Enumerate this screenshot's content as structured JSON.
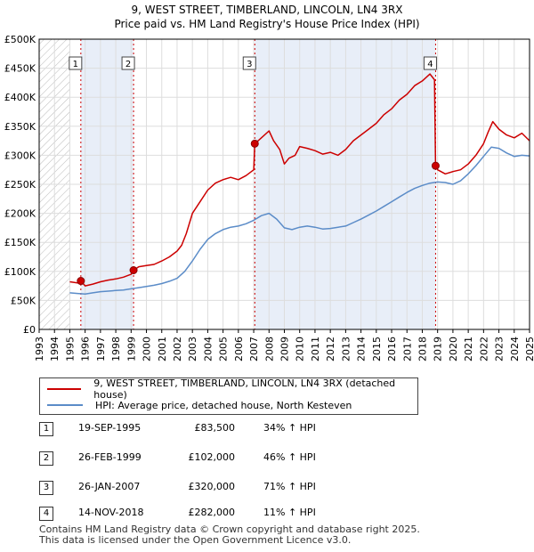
{
  "header": {
    "title": "9, WEST STREET, TIMBERLAND, LINCOLN, LN4 3RX",
    "subtitle": "Price paid vs. HM Land Registry's House Price Index (HPI)"
  },
  "legend": {
    "items": [
      {
        "label": "9, WEST STREET, TIMBERLAND, LINCOLN, LN4 3RX (detached house)",
        "color": "#cc0000"
      },
      {
        "label": "HPI: Average price, detached house, North Kesteven",
        "color": "#5b8cc8"
      }
    ]
  },
  "sales": [
    {
      "num": "1",
      "date": "19-SEP-1995",
      "price": "£83,500",
      "hpi": "34% ↑ HPI"
    },
    {
      "num": "2",
      "date": "26-FEB-1999",
      "price": "£102,000",
      "hpi": "46% ↑ HPI"
    },
    {
      "num": "3",
      "date": "26-JAN-2007",
      "price": "£320,000",
      "hpi": "71% ↑ HPI"
    },
    {
      "num": "4",
      "date": "14-NOV-2018",
      "price": "£282,000",
      "hpi": "11% ↑ HPI"
    }
  ],
  "footer": {
    "line1": "Contains HM Land Registry data © Crown copyright and database right 2025.",
    "line2": "This data is licensed under the Open Government Licence v3.0."
  },
  "chart_data": {
    "type": "line",
    "title": "9, WEST STREET, TIMBERLAND, LINCOLN, LN4 3RX",
    "subtitle": "Price paid vs. HM Land Registry's House Price Index (HPI)",
    "xlabel": "",
    "ylabel": "",
    "xlim": [
      1993,
      2025
    ],
    "ylim": [
      0,
      500000
    ],
    "x_ticks": [
      1993,
      1994,
      1995,
      1996,
      1997,
      1998,
      1999,
      2000,
      2001,
      2002,
      2003,
      2004,
      2005,
      2006,
      2007,
      2008,
      2009,
      2010,
      2011,
      2012,
      2013,
      2014,
      2015,
      2016,
      2017,
      2018,
      2019,
      2020,
      2021,
      2022,
      2023,
      2024,
      2025
    ],
    "y_ticks": [
      0,
      50000,
      100000,
      150000,
      200000,
      250000,
      300000,
      350000,
      400000,
      450000,
      500000
    ],
    "y_tick_labels": [
      "£0",
      "£50K",
      "£100K",
      "£150K",
      "£200K",
      "£250K",
      "£300K",
      "£350K",
      "£400K",
      "£450K",
      "£500K"
    ],
    "grid": true,
    "no_data_until": 1995.0,
    "series": [
      {
        "name": "9, WEST STREET, TIMBERLAND, LINCOLN, LN4 3RX (detached house)",
        "color": "#cc0000",
        "x": [
          1995.0,
          1995.5,
          1995.72,
          1996.0,
          1996.5,
          1997.0,
          1997.5,
          1998.0,
          1998.5,
          1999.0,
          1999.16,
          1999.5,
          2000.0,
          2000.5,
          2001.0,
          2001.5,
          2002.0,
          2002.3,
          2002.6,
          2003.0,
          2003.5,
          2004.0,
          2004.5,
          2005.0,
          2005.5,
          2006.0,
          2006.5,
          2007.0,
          2007.07,
          2007.5,
          2008.0,
          2008.3,
          2008.7,
          2009.0,
          2009.3,
          2009.7,
          2010.0,
          2010.5,
          2011.0,
          2011.5,
          2012.0,
          2012.5,
          2013.0,
          2013.5,
          2014.0,
          2014.5,
          2015.0,
          2015.5,
          2016.0,
          2016.5,
          2017.0,
          2017.5,
          2018.0,
          2018.5,
          2018.8,
          2018.87,
          2019.0,
          2019.5,
          2020.0,
          2020.5,
          2021.0,
          2021.5,
          2022.0,
          2022.3,
          2022.6,
          2023.0,
          2023.5,
          2024.0,
          2024.5,
          2025.0
        ],
        "values": [
          82000,
          80000,
          83500,
          75000,
          78000,
          82000,
          85000,
          87000,
          90000,
          95000,
          102000,
          108000,
          110000,
          112000,
          118000,
          125000,
          135000,
          145000,
          165000,
          200000,
          220000,
          240000,
          252000,
          258000,
          262000,
          258000,
          265000,
          275000,
          320000,
          330000,
          342000,
          325000,
          310000,
          285000,
          295000,
          300000,
          315000,
          312000,
          308000,
          302000,
          305000,
          300000,
          310000,
          325000,
          335000,
          345000,
          355000,
          370000,
          380000,
          395000,
          405000,
          420000,
          428000,
          440000,
          430000,
          282000,
          275000,
          268000,
          272000,
          275000,
          285000,
          300000,
          320000,
          340000,
          358000,
          345000,
          335000,
          330000,
          338000,
          325000
        ]
      },
      {
        "name": "HPI: Average price, detached house, North Kesteven",
        "color": "#5b8cc8",
        "x": [
          1995.0,
          1995.5,
          1996.0,
          1996.5,
          1997.0,
          1997.5,
          1998.0,
          1998.5,
          1999.0,
          1999.5,
          2000.0,
          2000.5,
          2001.0,
          2001.5,
          2002.0,
          2002.5,
          2003.0,
          2003.5,
          2004.0,
          2004.5,
          2005.0,
          2005.5,
          2006.0,
          2006.5,
          2007.0,
          2007.5,
          2008.0,
          2008.5,
          2009.0,
          2009.5,
          2010.0,
          2010.5,
          2011.0,
          2011.5,
          2012.0,
          2012.5,
          2013.0,
          2013.5,
          2014.0,
          2014.5,
          2015.0,
          2015.5,
          2016.0,
          2016.5,
          2017.0,
          2017.5,
          2018.0,
          2018.5,
          2019.0,
          2019.5,
          2020.0,
          2020.5,
          2021.0,
          2021.5,
          2022.0,
          2022.5,
          2023.0,
          2023.5,
          2024.0,
          2024.5,
          2025.0
        ],
        "values": [
          63000,
          62000,
          61000,
          63000,
          65000,
          66000,
          67000,
          68000,
          70000,
          72000,
          74000,
          76000,
          79000,
          83000,
          88000,
          100000,
          118000,
          138000,
          155000,
          165000,
          172000,
          176000,
          178000,
          182000,
          188000,
          196000,
          200000,
          190000,
          175000,
          172000,
          176000,
          178000,
          176000,
          173000,
          174000,
          176000,
          178000,
          184000,
          190000,
          197000,
          204000,
          212000,
          220000,
          228000,
          236000,
          243000,
          248000,
          252000,
          254000,
          253000,
          250000,
          256000,
          268000,
          282000,
          298000,
          314000,
          312000,
          304000,
          298000,
          300000,
          299000
        ]
      }
    ],
    "sale_markers": [
      {
        "label": "1",
        "x": 1995.72,
        "value": 83500
      },
      {
        "label": "2",
        "x": 1999.16,
        "value": 102000
      },
      {
        "label": "3",
        "x": 2007.07,
        "value": 320000
      },
      {
        "label": "4",
        "x": 2018.87,
        "value": 282000
      }
    ]
  }
}
